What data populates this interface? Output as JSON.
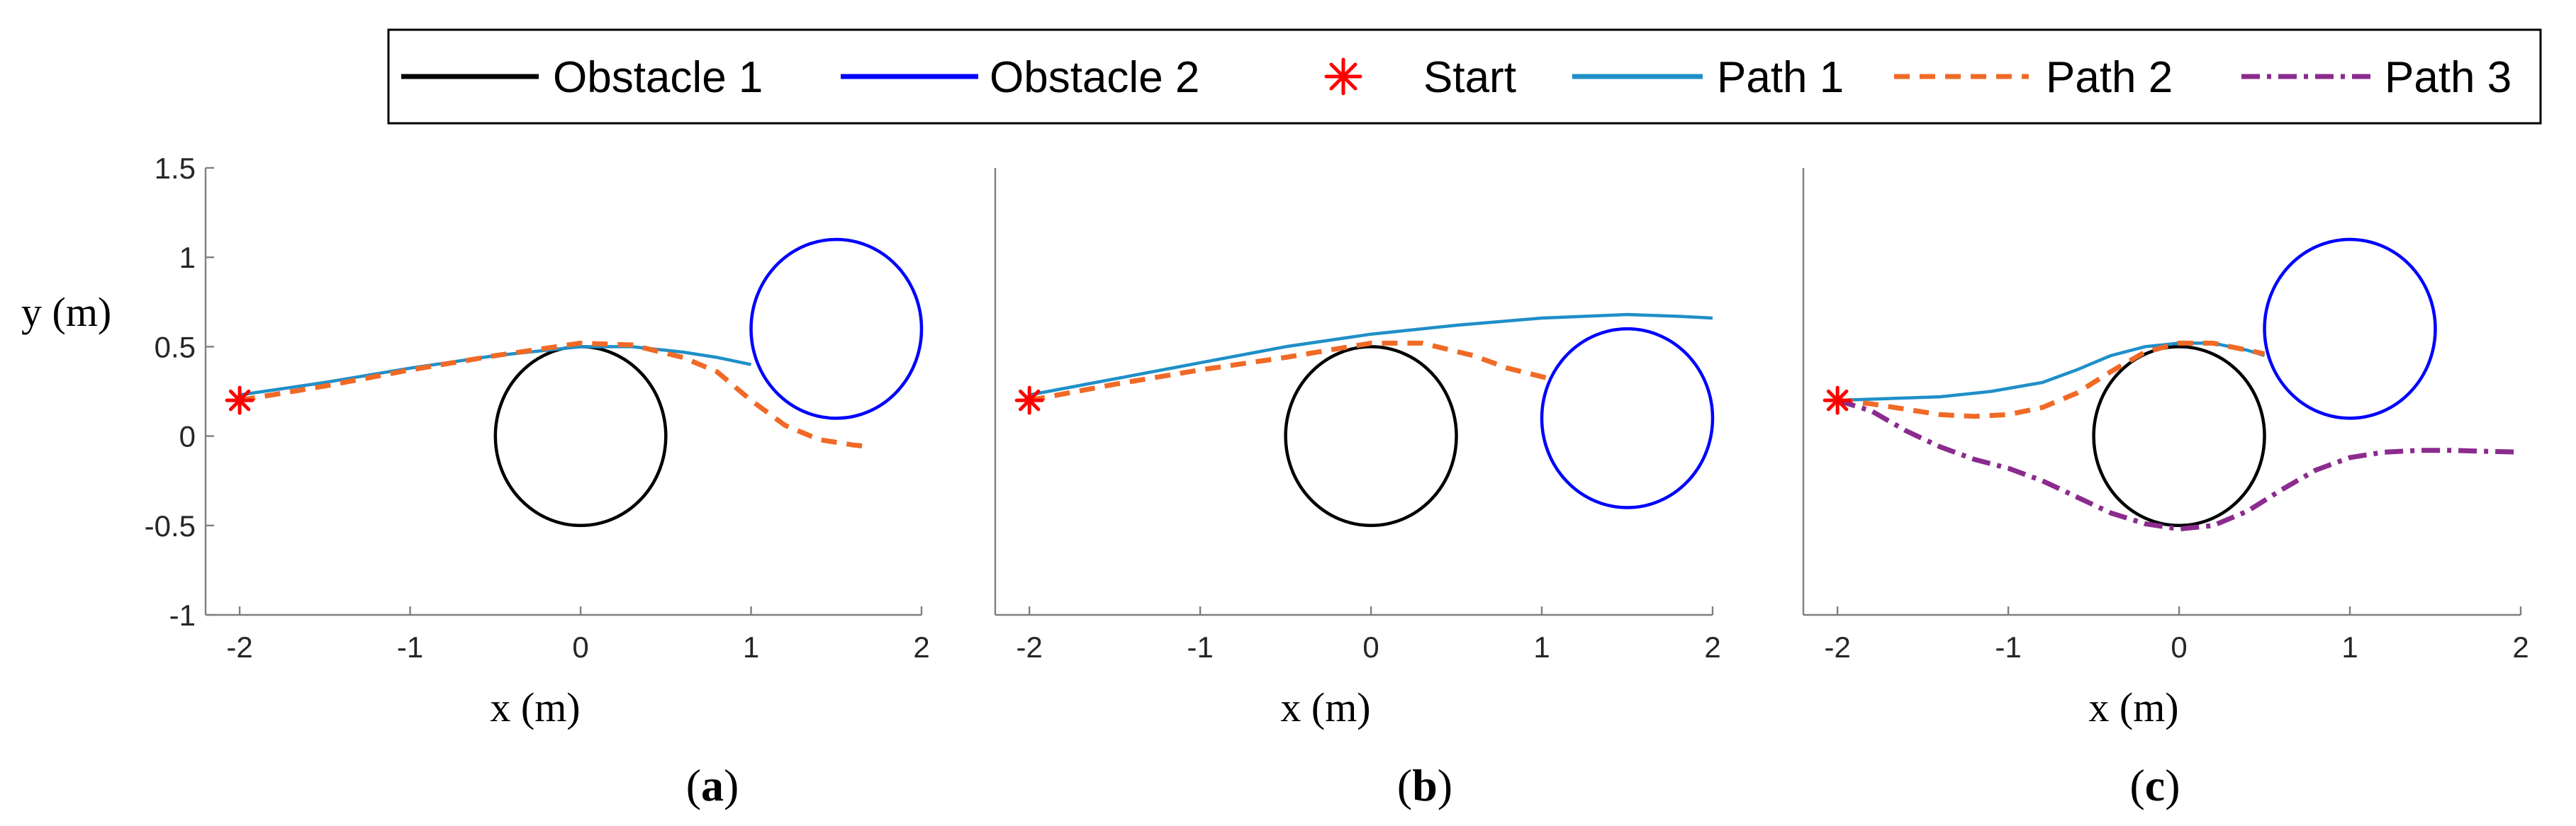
{
  "chart_data": [
    {
      "type": "line",
      "panel_label": {
        "open": "(",
        "letter": "a",
        "close": ")"
      },
      "xlabel": "x (m)",
      "ylabel": "y (m)",
      "xlim": [
        -2.2,
        2
      ],
      "ylim": [
        -1,
        1.5
      ],
      "xticks": [
        -2,
        -1,
        0,
        1,
        2
      ],
      "yticks": [
        -1,
        -0.5,
        0,
        0.5,
        1,
        1.5
      ],
      "xtick_labels": [
        "-2",
        "-1",
        "0",
        "1",
        "2"
      ],
      "ytick_labels": [
        "-1",
        "-0.5",
        "0",
        "0.5",
        "1",
        "1.5"
      ],
      "obstacles": [
        {
          "name": "Obstacle 1",
          "center": [
            0,
            0
          ],
          "radius": 0.5,
          "color": "#000000"
        },
        {
          "name": "Obstacle 2",
          "center": [
            1.5,
            0.6
          ],
          "radius": 0.5,
          "color": "#0000ff"
        }
      ],
      "start": {
        "x": -2,
        "y": 0.2
      },
      "series": [
        {
          "name": "Path 1",
          "color": "#1f8fc8",
          "x": [
            -2,
            -1.5,
            -1,
            -0.5,
            0,
            0.3,
            0.6,
            0.8,
            1.0
          ],
          "y": [
            0.23,
            0.3,
            0.38,
            0.45,
            0.5,
            0.5,
            0.47,
            0.44,
            0.4
          ]
        },
        {
          "name": "Path 2",
          "color": "#f06a26",
          "x": [
            -2,
            -1.5,
            -1,
            -0.5,
            0,
            0.3,
            0.6,
            0.8,
            1.0,
            1.2,
            1.4,
            1.6,
            1.7
          ],
          "y": [
            0.2,
            0.28,
            0.37,
            0.45,
            0.52,
            0.51,
            0.44,
            0.36,
            0.2,
            0.06,
            -0.02,
            -0.05,
            -0.06
          ]
        }
      ]
    },
    {
      "type": "line",
      "panel_label": {
        "open": "(",
        "letter": "b",
        "close": ")"
      },
      "xlabel": "x (m)",
      "ylabel": "",
      "xlim": [
        -2.2,
        2
      ],
      "ylim": [
        -1,
        1.5
      ],
      "xticks": [
        -2,
        -1,
        0,
        1,
        2
      ],
      "yticks": [],
      "xtick_labels": [
        "-2",
        "-1",
        "0",
        "1",
        "2"
      ],
      "ytick_labels": [],
      "obstacles": [
        {
          "name": "Obstacle 1",
          "center": [
            0,
            0
          ],
          "radius": 0.5,
          "color": "#000000"
        },
        {
          "name": "Obstacle 2",
          "center": [
            1.5,
            0.1
          ],
          "radius": 0.5,
          "color": "#0000ff"
        }
      ],
      "start": {
        "x": -2,
        "y": 0.2
      },
      "series": [
        {
          "name": "Path 1",
          "color": "#1f8fc8",
          "x": [
            -2,
            -1.5,
            -1,
            -0.5,
            0,
            0.5,
            1.0,
            1.5,
            1.8,
            2.0
          ],
          "y": [
            0.23,
            0.32,
            0.41,
            0.5,
            0.57,
            0.62,
            0.66,
            0.68,
            0.67,
            0.66
          ]
        },
        {
          "name": "Path 2",
          "color": "#f06a26",
          "x": [
            -2,
            -1.5,
            -1,
            -0.5,
            0,
            0.3,
            0.6,
            0.8,
            1.05
          ],
          "y": [
            0.2,
            0.29,
            0.37,
            0.44,
            0.52,
            0.52,
            0.45,
            0.38,
            0.32
          ]
        }
      ]
    },
    {
      "type": "line",
      "panel_label": {
        "open": "(",
        "letter": "c",
        "close": ")"
      },
      "xlabel": "x (m)",
      "ylabel": "",
      "xlim": [
        -2.2,
        2
      ],
      "ylim": [
        -1,
        1.5
      ],
      "xticks": [
        -2,
        -1,
        0,
        1,
        2
      ],
      "yticks": [],
      "xtick_labels": [
        "-2",
        "-1",
        "0",
        "1",
        "2"
      ],
      "ytick_labels": [],
      "obstacles": [
        {
          "name": "Obstacle 1",
          "center": [
            0,
            0
          ],
          "radius": 0.5,
          "color": "#000000"
        },
        {
          "name": "Obstacle 2",
          "center": [
            1.0,
            0.6
          ],
          "radius": 0.5,
          "color": "#0000ff"
        }
      ],
      "start": {
        "x": -2,
        "y": 0.2
      },
      "series": [
        {
          "name": "Path 1",
          "color": "#1f8fc8",
          "x": [
            -2,
            -1.7,
            -1.4,
            -1.1,
            -0.8,
            -0.6,
            -0.4,
            -0.2,
            0,
            0.2,
            0.4,
            0.5
          ],
          "y": [
            0.2,
            0.21,
            0.22,
            0.25,
            0.3,
            0.37,
            0.45,
            0.5,
            0.52,
            0.52,
            0.48,
            0.45
          ]
        },
        {
          "name": "Path 2",
          "color": "#f06a26",
          "x": [
            -2,
            -1.8,
            -1.6,
            -1.4,
            -1.2,
            -1.0,
            -0.8,
            -0.6,
            -0.4,
            -0.2,
            0,
            0.2,
            0.4,
            0.5
          ],
          "y": [
            0.2,
            0.18,
            0.15,
            0.12,
            0.11,
            0.12,
            0.16,
            0.24,
            0.36,
            0.47,
            0.52,
            0.52,
            0.48,
            0.46
          ]
        },
        {
          "name": "Path 3",
          "color": "#8b2b8e",
          "x": [
            -2,
            -1.8,
            -1.6,
            -1.4,
            -1.2,
            -1.0,
            -0.8,
            -0.6,
            -0.4,
            -0.2,
            0,
            0.2,
            0.4,
            0.6,
            0.8,
            1.0,
            1.2,
            1.4,
            1.6,
            1.8,
            2.0
          ],
          "y": [
            0.2,
            0.14,
            0.03,
            -0.06,
            -0.13,
            -0.18,
            -0.25,
            -0.34,
            -0.43,
            -0.49,
            -0.52,
            -0.5,
            -0.42,
            -0.3,
            -0.19,
            -0.12,
            -0.09,
            -0.08,
            -0.08,
            -0.085,
            -0.09
          ]
        }
      ]
    }
  ],
  "legend": {
    "items": [
      {
        "label": "Obstacle 1",
        "style": "solid",
        "color": "#000000"
      },
      {
        "label": "Obstacle 2",
        "style": "solid",
        "color": "#0000ff"
      },
      {
        "label": "Start",
        "style": "star",
        "color": "#ff0000"
      },
      {
        "label": "Path 1",
        "style": "solid",
        "color": "#1f8fc8"
      },
      {
        "label": "Path 2",
        "style": "dashed",
        "color": "#f06a26"
      },
      {
        "label": "Path 3",
        "style": "dashdot",
        "color": "#8b2b8e"
      }
    ]
  }
}
